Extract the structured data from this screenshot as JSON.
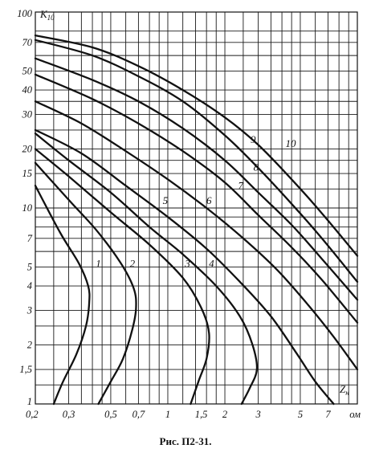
{
  "caption": "Рис. П2-31.",
  "chart_data": {
    "type": "line",
    "title": "",
    "xlabel": "Zн",
    "xlabel_main": "Z",
    "xlabel_sub": "н",
    "ylabel": "K10",
    "ylabel_main": "K",
    "ylabel_sub": "10",
    "x_scale": "log",
    "y_scale": "log",
    "xlim": [
      0.2,
      10
    ],
    "ylim": [
      1,
      100
    ],
    "grid": true,
    "x_ticks": [
      {
        "value": 0.2,
        "label": "0,2"
      },
      {
        "value": 0.3,
        "label": "0,3"
      },
      {
        "value": 0.5,
        "label": "0,5"
      },
      {
        "value": 0.7,
        "label": "0,7"
      },
      {
        "value": 1,
        "label": "1"
      },
      {
        "value": 1.5,
        "label": "1,5"
      },
      {
        "value": 2,
        "label": "2"
      },
      {
        "value": 3,
        "label": "3"
      },
      {
        "value": 5,
        "label": "5"
      },
      {
        "value": 7,
        "label": "7"
      },
      {
        "value": 10,
        "label": "ом"
      }
    ],
    "y_ticks": [
      {
        "value": 1,
        "label": "1"
      },
      {
        "value": 1.5,
        "label": "1,5"
      },
      {
        "value": 2,
        "label": "2"
      },
      {
        "value": 3,
        "label": "3"
      },
      {
        "value": 4,
        "label": "4"
      },
      {
        "value": 5,
        "label": "5"
      },
      {
        "value": 7,
        "label": "7"
      },
      {
        "value": 10,
        "label": "10"
      },
      {
        "value": 15,
        "label": "15"
      },
      {
        "value": 20,
        "label": "20"
      },
      {
        "value": 30,
        "label": "30"
      },
      {
        "value": 40,
        "label": "40"
      },
      {
        "value": 50,
        "label": "50"
      },
      {
        "value": 70,
        "label": "70"
      },
      {
        "value": 100,
        "label": "100"
      }
    ],
    "x_grid": [
      0.2,
      0.25,
      0.3,
      0.35,
      0.4,
      0.45,
      0.5,
      0.6,
      0.7,
      0.8,
      0.9,
      1,
      1.2,
      1.4,
      1.6,
      1.8,
      2,
      2.5,
      3,
      3.5,
      4,
      4.5,
      5,
      6,
      7,
      8,
      9,
      10
    ],
    "y_grid": [
      1,
      1.25,
      1.5,
      2,
      2.5,
      3,
      4,
      5,
      6,
      7,
      8,
      9,
      10,
      12.5,
      15,
      17.5,
      20,
      25,
      30,
      35,
      40,
      50,
      60,
      70,
      80,
      100
    ],
    "series": [
      {
        "name": "1",
        "label_at": [
          0.43,
          5.0
        ],
        "points": [
          [
            0.2,
            13
          ],
          [
            0.27,
            7.5
          ],
          [
            0.34,
            5.2
          ],
          [
            0.38,
            4
          ],
          [
            0.385,
            3.3
          ],
          [
            0.37,
            2.5
          ],
          [
            0.33,
            1.8
          ],
          [
            0.28,
            1.3
          ],
          [
            0.25,
            1
          ]
        ]
      },
      {
        "name": "2",
        "label_at": [
          0.65,
          5.0
        ],
        "points": [
          [
            0.2,
            17
          ],
          [
            0.3,
            11
          ],
          [
            0.42,
            7.7
          ],
          [
            0.56,
            5.3
          ],
          [
            0.66,
            3.9
          ],
          [
            0.68,
            3.1
          ],
          [
            0.65,
            2.4
          ],
          [
            0.58,
            1.7
          ],
          [
            0.5,
            1.3
          ],
          [
            0.43,
            1
          ]
        ]
      },
      {
        "name": "3",
        "label_at": [
          1.27,
          5.0
        ],
        "points": [
          [
            0.2,
            20
          ],
          [
            0.3,
            14.5
          ],
          [
            0.5,
            9.5
          ],
          [
            0.8,
            6.5
          ],
          [
            1.2,
            4.4
          ],
          [
            1.5,
            3.1
          ],
          [
            1.65,
            2.3
          ],
          [
            1.6,
            1.7
          ],
          [
            1.45,
            1.3
          ],
          [
            1.32,
            1
          ]
        ]
      },
      {
        "name": "4",
        "label_at": [
          1.7,
          5.0
        ],
        "points": [
          [
            0.2,
            24
          ],
          [
            0.3,
            17.5
          ],
          [
            0.5,
            12
          ],
          [
            0.8,
            8
          ],
          [
            1.2,
            5.8
          ],
          [
            1.8,
            4
          ],
          [
            2.4,
            2.8
          ],
          [
            2.8,
            2
          ],
          [
            2.95,
            1.5
          ],
          [
            2.7,
            1.2
          ],
          [
            2.45,
            1
          ]
        ]
      },
      {
        "name": "5",
        "label_at": [
          0.97,
          10.5
        ],
        "points": [
          [
            0.2,
            25
          ],
          [
            0.35,
            19
          ],
          [
            0.6,
            13
          ],
          [
            1,
            9
          ],
          [
            1.6,
            6.2
          ],
          [
            2.4,
            4.2
          ],
          [
            3.5,
            2.8
          ],
          [
            4.8,
            1.8
          ],
          [
            6,
            1.3
          ],
          [
            7.5,
            1
          ]
        ]
      },
      {
        "name": "6",
        "label_at": [
          1.65,
          10.5
        ],
        "points": [
          [
            0.2,
            35
          ],
          [
            0.35,
            27
          ],
          [
            0.6,
            19.5
          ],
          [
            1,
            14
          ],
          [
            1.6,
            10
          ],
          [
            2.5,
            7
          ],
          [
            3.8,
            4.8
          ],
          [
            5.5,
            3.2
          ],
          [
            7.5,
            2.2
          ],
          [
            10,
            1.5
          ]
        ]
      },
      {
        "name": "7",
        "label_at": [
          2.42,
          12.5
        ],
        "points": [
          [
            0.2,
            48
          ],
          [
            0.4,
            36
          ],
          [
            0.7,
            27
          ],
          [
            1.2,
            19.5
          ],
          [
            2,
            13.5
          ],
          [
            3,
            9.2
          ],
          [
            4.5,
            6.3
          ],
          [
            6.5,
            4.3
          ],
          [
            10,
            2.6
          ]
        ]
      },
      {
        "name": "8",
        "label_at": [
          2.92,
          15.5
        ],
        "points": [
          [
            0.2,
            58
          ],
          [
            0.4,
            45
          ],
          [
            0.7,
            35
          ],
          [
            1.2,
            25.5
          ],
          [
            2,
            17.5
          ],
          [
            3,
            12
          ],
          [
            4.5,
            8.2
          ],
          [
            6.5,
            5.5
          ],
          [
            10,
            3.4
          ]
        ]
      },
      {
        "name": "9",
        "label_at": [
          2.82,
          21.5
        ],
        "points": [
          [
            0.2,
            72
          ],
          [
            0.4,
            60
          ],
          [
            0.7,
            47
          ],
          [
            1.2,
            35
          ],
          [
            2,
            23.5
          ],
          [
            3,
            16
          ],
          [
            4.5,
            10.5
          ],
          [
            6.5,
            7
          ],
          [
            10,
            4.2
          ]
        ]
      },
      {
        "name": "10",
        "label_at": [
          4.45,
          20.5
        ],
        "points": [
          [
            0.2,
            76
          ],
          [
            0.4,
            66
          ],
          [
            0.7,
            53
          ],
          [
            1.2,
            40
          ],
          [
            2,
            29
          ],
          [
            3,
            21
          ],
          [
            4.5,
            14
          ],
          [
            6.5,
            9.4
          ],
          [
            10,
            5.7
          ]
        ]
      }
    ]
  }
}
